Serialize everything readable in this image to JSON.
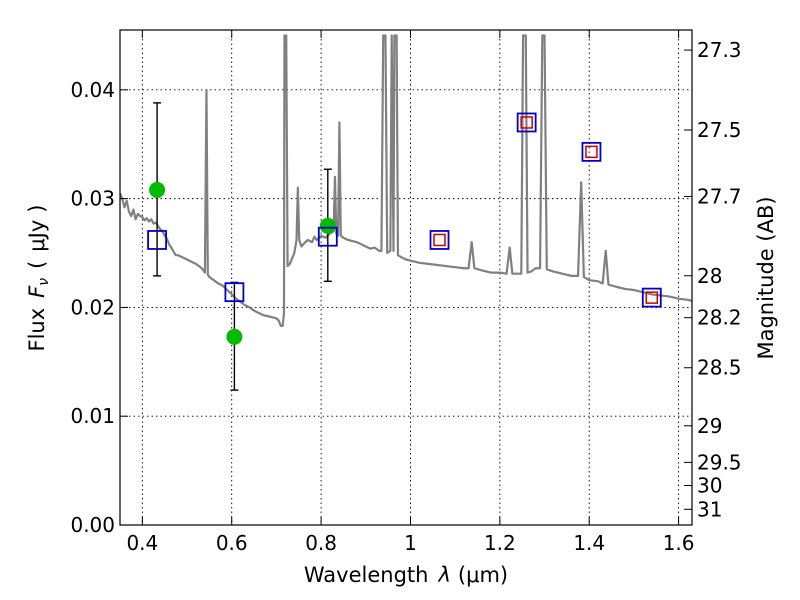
{
  "chart_data": {
    "type": "scatter",
    "xlabel_prefix": "Wavelength",
    "xlabel_symbol": "λ",
    "xlabel_unit": "(μm)",
    "ylabel_prefix": "Flux",
    "ylabel_symbol": "F",
    "ylabel_subscript": "ν",
    "ylabel_unit": "μJy",
    "y2label": "Magnitude (AB)",
    "xlim": [
      0.35,
      1.63
    ],
    "ylim": [
      0.0,
      0.0455
    ],
    "grid": true,
    "x_ticks": [
      {
        "value": 0.4,
        "label": "0.4"
      },
      {
        "value": 0.6,
        "label": "0.6"
      },
      {
        "value": 0.8,
        "label": "0.8"
      },
      {
        "value": 1.0,
        "label": "1"
      },
      {
        "value": 1.2,
        "label": "1.2"
      },
      {
        "value": 1.4,
        "label": "1.4"
      },
      {
        "value": 1.6,
        "label": "1.6"
      }
    ],
    "y_ticks": [
      {
        "value": 0.0,
        "label": "0.00"
      },
      {
        "value": 0.01,
        "label": "0.01"
      },
      {
        "value": 0.02,
        "label": "0.02"
      },
      {
        "value": 0.03,
        "label": "0.03"
      },
      {
        "value": 0.04,
        "label": "0.04"
      }
    ],
    "y2_ticks": [
      {
        "value": 27.3,
        "label": "27.3"
      },
      {
        "value": 27.5,
        "label": "27.5"
      },
      {
        "value": 27.7,
        "label": "27.7"
      },
      {
        "value": 28.0,
        "label": "28"
      },
      {
        "value": 28.2,
        "label": "28.2"
      },
      {
        "value": 28.5,
        "label": "28.5"
      },
      {
        "value": 29.0,
        "label": "29"
      },
      {
        "value": 29.5,
        "label": "29.5"
      },
      {
        "value": 30.0,
        "label": "30"
      },
      {
        "value": 31.0,
        "label": "31"
      }
    ],
    "spectrum": {
      "color": "#808080",
      "points": [
        [
          0.35,
          0.0305
        ],
        [
          0.355,
          0.03
        ],
        [
          0.36,
          0.0292
        ],
        [
          0.365,
          0.0298
        ],
        [
          0.37,
          0.0288
        ],
        [
          0.375,
          0.0284
        ],
        [
          0.38,
          0.029
        ],
        [
          0.385,
          0.0281
        ],
        [
          0.39,
          0.0286
        ],
        [
          0.395,
          0.0284
        ],
        [
          0.4,
          0.0283
        ],
        [
          0.405,
          0.028
        ],
        [
          0.41,
          0.0282
        ],
        [
          0.415,
          0.0279
        ],
        [
          0.42,
          0.0281
        ],
        [
          0.425,
          0.0277
        ],
        [
          0.43,
          0.0278
        ],
        [
          0.435,
          0.0275
        ],
        [
          0.44,
          0.0272
        ],
        [
          0.445,
          0.027
        ],
        [
          0.45,
          0.0266
        ],
        [
          0.455,
          0.0263
        ],
        [
          0.46,
          0.0258
        ],
        [
          0.465,
          0.0255
        ],
        [
          0.47,
          0.0251
        ],
        [
          0.475,
          0.0248
        ],
        [
          0.48,
          0.0248
        ],
        [
          0.49,
          0.0246
        ],
        [
          0.5,
          0.0244
        ],
        [
          0.51,
          0.0242
        ],
        [
          0.52,
          0.024
        ],
        [
          0.53,
          0.0237
        ],
        [
          0.535,
          0.0235
        ],
        [
          0.54,
          0.0232
        ],
        [
          0.5435,
          0.04
        ],
        [
          0.5465,
          0.023
        ],
        [
          0.55,
          0.0228
        ],
        [
          0.56,
          0.0225
        ],
        [
          0.57,
          0.0222
        ],
        [
          0.58,
          0.022
        ],
        [
          0.59,
          0.0216
        ],
        [
          0.6,
          0.0212
        ],
        [
          0.61,
          0.0208
        ],
        [
          0.62,
          0.0205
        ],
        [
          0.63,
          0.0202
        ],
        [
          0.64,
          0.02
        ],
        [
          0.65,
          0.0197
        ],
        [
          0.66,
          0.0195
        ],
        [
          0.67,
          0.0193
        ],
        [
          0.68,
          0.0192
        ],
        [
          0.69,
          0.0191
        ],
        [
          0.7,
          0.019
        ],
        [
          0.705,
          0.0188
        ],
        [
          0.71,
          0.0183
        ],
        [
          0.714,
          0.0183
        ],
        [
          0.717,
          0.0195
        ],
        [
          0.718,
          0.045
        ],
        [
          0.722,
          0.045
        ],
        [
          0.725,
          0.0238
        ],
        [
          0.73,
          0.024
        ],
        [
          0.74,
          0.025
        ],
        [
          0.745,
          0.0262
        ],
        [
          0.748,
          0.031
        ],
        [
          0.751,
          0.0262
        ],
        [
          0.756,
          0.0256
        ],
        [
          0.76,
          0.0258
        ],
        [
          0.77,
          0.0262
        ],
        [
          0.78,
          0.026
        ],
        [
          0.785,
          0.0265
        ],
        [
          0.79,
          0.0262
        ],
        [
          0.8,
          0.0266
        ],
        [
          0.81,
          0.0264
        ],
        [
          0.82,
          0.0268
        ],
        [
          0.828,
          0.027
        ],
        [
          0.831,
          0.032
        ],
        [
          0.834,
          0.0268
        ],
        [
          0.838,
          0.0266
        ],
        [
          0.841,
          0.037
        ],
        [
          0.844,
          0.0266
        ],
        [
          0.85,
          0.0264
        ],
        [
          0.86,
          0.0262
        ],
        [
          0.87,
          0.0261
        ],
        [
          0.88,
          0.026
        ],
        [
          0.89,
          0.0258
        ],
        [
          0.9,
          0.0256
        ],
        [
          0.91,
          0.0254
        ],
        [
          0.92,
          0.0255
        ],
        [
          0.93,
          0.0252
        ],
        [
          0.935,
          0.0252
        ],
        [
          0.939,
          0.045
        ],
        [
          0.944,
          0.045
        ],
        [
          0.948,
          0.025
        ],
        [
          0.955,
          0.0252
        ],
        [
          0.958,
          0.045
        ],
        [
          0.962,
          0.0252
        ],
        [
          0.964,
          0.045
        ],
        [
          0.969,
          0.045
        ],
        [
          0.972,
          0.0248
        ],
        [
          0.98,
          0.0246
        ],
        [
          0.99,
          0.0244
        ],
        [
          1.0,
          0.0243
        ],
        [
          1.01,
          0.0242
        ],
        [
          1.02,
          0.0241
        ],
        [
          1.04,
          0.024
        ],
        [
          1.06,
          0.0239
        ],
        [
          1.08,
          0.0238
        ],
        [
          1.1,
          0.0237
        ],
        [
          1.12,
          0.0236
        ],
        [
          1.13,
          0.0236
        ],
        [
          1.137,
          0.026
        ],
        [
          1.143,
          0.0236
        ],
        [
          1.16,
          0.0234
        ],
        [
          1.18,
          0.0232
        ],
        [
          1.2,
          0.0232
        ],
        [
          1.215,
          0.0231
        ],
        [
          1.222,
          0.0255
        ],
        [
          1.228,
          0.0231
        ],
        [
          1.24,
          0.0231
        ],
        [
          1.248,
          0.0231
        ],
        [
          1.252,
          0.045
        ],
        [
          1.258,
          0.045
        ],
        [
          1.262,
          0.0232
        ],
        [
          1.27,
          0.0233
        ],
        [
          1.28,
          0.0236
        ],
        [
          1.29,
          0.0236
        ],
        [
          1.295,
          0.045
        ],
        [
          1.3,
          0.045
        ],
        [
          1.305,
          0.0235
        ],
        [
          1.32,
          0.0233
        ],
        [
          1.34,
          0.0231
        ],
        [
          1.36,
          0.0229
        ],
        [
          1.375,
          0.0229
        ],
        [
          1.382,
          0.0315
        ],
        [
          1.388,
          0.0228
        ],
        [
          1.4,
          0.0225
        ],
        [
          1.42,
          0.0224
        ],
        [
          1.43,
          0.0222
        ],
        [
          1.437,
          0.0252
        ],
        [
          1.443,
          0.0221
        ],
        [
          1.46,
          0.0219
        ],
        [
          1.48,
          0.0217
        ],
        [
          1.5,
          0.0216
        ],
        [
          1.52,
          0.0214
        ],
        [
          1.54,
          0.0212
        ],
        [
          1.56,
          0.0211
        ],
        [
          1.58,
          0.021
        ],
        [
          1.6,
          0.0208
        ],
        [
          1.62,
          0.0207
        ],
        [
          1.63,
          0.0206
        ]
      ]
    },
    "model_squares": {
      "color": "#0000cc",
      "points": [
        [
          0.433,
          0.0262
        ],
        [
          0.606,
          0.0214
        ],
        [
          0.815,
          0.0265
        ],
        [
          1.065,
          0.0262
        ],
        [
          1.26,
          0.037
        ],
        [
          1.405,
          0.0343
        ],
        [
          1.54,
          0.0209
        ]
      ]
    },
    "observed_squares": {
      "color": "#cc0000",
      "points": [
        [
          1.065,
          0.0262
        ],
        [
          1.26,
          0.037
        ],
        [
          1.405,
          0.0343
        ],
        [
          1.54,
          0.0209
        ]
      ]
    },
    "observed_circles": {
      "color": "#00bb00",
      "points": [
        {
          "x": 0.433,
          "y": 0.0308
        },
        {
          "x": 0.606,
          "y": 0.0173
        },
        {
          "x": 0.815,
          "y": 0.0275
        }
      ]
    },
    "error_bars": {
      "color": "#000000",
      "points": [
        {
          "x": 0.433,
          "low": 0.0229,
          "high": 0.0388
        },
        {
          "x": 0.606,
          "low": 0.0124,
          "high": 0.0223
        },
        {
          "x": 0.815,
          "low": 0.0224,
          "high": 0.0327
        }
      ]
    }
  }
}
